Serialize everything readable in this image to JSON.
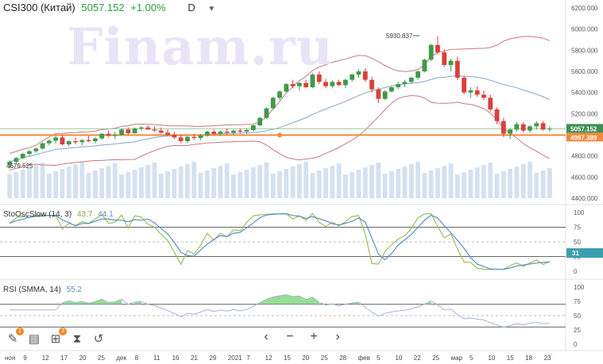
{
  "header": {
    "symbol": "CSI300 (Китай)",
    "price": "5057.152",
    "change": "+1.00%",
    "timeframe": "D"
  },
  "watermark": "Finam.ru",
  "price_axis": [
    "6200.000",
    "6000.000",
    "5800.000",
    "5600.000",
    "5400.000",
    "5200.000",
    "5000.000",
    "4800.000",
    "4600.000",
    "4400.000"
  ],
  "price_badges": {
    "last": "5057.152",
    "level": "4997.389",
    "last_color": "#3f8f55",
    "level_color": "#ef8b3c"
  },
  "annotations": {
    "high": "5930.837",
    "low": "4679.525"
  },
  "stoch": {
    "label": "StoOscSlow (14, 3)",
    "value1": "43.7",
    "value2": "44.1",
    "axis": [
      "100",
      "75",
      "50",
      "25",
      "0"
    ],
    "badge": "31"
  },
  "rsi": {
    "label": "RSI (SMMA, 14)",
    "value": "55.2",
    "axis": [
      "100",
      "75",
      "50",
      "25",
      "0"
    ]
  },
  "time_axis": [
    "ноя",
    "9",
    "12",
    "17",
    "20",
    "25",
    "дек",
    "8",
    "11",
    "16",
    "21",
    "29",
    "2021",
    "7",
    "12",
    "15",
    "20",
    "25",
    "28",
    "фев",
    "5",
    "10",
    "22",
    "25",
    "мар",
    "5",
    "10",
    "15",
    "18",
    "23"
  ],
  "colors": {
    "up": "#3e9a49",
    "down": "#d9413b",
    "bb_outer": "#c9787a",
    "bb_mid": "#7ea6cf",
    "volume": "#d4e1ef",
    "stoch_k": "#9bbf5a",
    "stoch_d": "#5b8fc7",
    "rsi_line": "#9fb5d6",
    "rsi_fill": "#7ed47a",
    "level_line": "#ef8b3c"
  },
  "toolbar_icons": [
    "pencil-icon",
    "document-icon",
    "add-indicator-icon",
    "settings-sliders-icon",
    "reset-icon"
  ],
  "toolbar_badges": [
    "1",
    "",
    "3",
    "",
    ""
  ],
  "zoom_controls": [
    "‹",
    "−",
    "+",
    "›"
  ],
  "chart_data": {
    "type": "candlestick",
    "title": "CSI300 (Китай)",
    "ylim": [
      4400,
      6200
    ],
    "candles": [
      [
        4720,
        4760,
        4679,
        4745
      ],
      [
        4745,
        4790,
        4730,
        4780
      ],
      [
        4780,
        4830,
        4770,
        4820
      ],
      [
        4820,
        4860,
        4800,
        4845
      ],
      [
        4845,
        4880,
        4830,
        4870
      ],
      [
        4870,
        4930,
        4860,
        4920
      ],
      [
        4920,
        4960,
        4900,
        4945
      ],
      [
        4945,
        4990,
        4920,
        4975
      ],
      [
        4975,
        5000,
        4900,
        4910
      ],
      [
        4910,
        4950,
        4890,
        4940
      ],
      [
        4940,
        4970,
        4910,
        4930
      ],
      [
        4930,
        4960,
        4900,
        4950
      ],
      [
        4950,
        4990,
        4930,
        4940
      ],
      [
        4940,
        4980,
        4920,
        4965
      ],
      [
        4965,
        5020,
        4950,
        5010
      ],
      [
        5010,
        5040,
        4980,
        4990
      ],
      [
        4990,
        5030,
        4960,
        5000
      ],
      [
        5000,
        5060,
        4990,
        5050
      ],
      [
        5050,
        5070,
        5000,
        5015
      ],
      [
        5015,
        5070,
        5010,
        5060
      ],
      [
        5060,
        5085,
        5040,
        5070
      ],
      [
        5070,
        5090,
        5045,
        5050
      ],
      [
        5050,
        5080,
        5030,
        5040
      ],
      [
        5040,
        5070,
        5010,
        5020
      ],
      [
        5020,
        5050,
        4990,
        5000
      ],
      [
        5000,
        5030,
        4960,
        4975
      ],
      [
        4975,
        5000,
        4920,
        4940
      ],
      [
        4940,
        4990,
        4920,
        4980
      ],
      [
        4980,
        5010,
        4950,
        4970
      ],
      [
        4970,
        5010,
        4950,
        4995
      ],
      [
        4995,
        5040,
        4980,
        5030
      ],
      [
        5030,
        5050,
        5000,
        5010
      ],
      [
        5010,
        5040,
        4990,
        5030
      ],
      [
        5030,
        5060,
        5000,
        5020
      ],
      [
        5020,
        5050,
        5000,
        5040
      ],
      [
        5040,
        5060,
        5010,
        5030
      ],
      [
        5030,
        5060,
        5010,
        5045
      ],
      [
        5045,
        5100,
        5030,
        5090
      ],
      [
        5090,
        5170,
        5080,
        5160
      ],
      [
        5160,
        5260,
        5150,
        5250
      ],
      [
        5250,
        5360,
        5240,
        5350
      ],
      [
        5350,
        5420,
        5330,
        5410
      ],
      [
        5410,
        5490,
        5400,
        5480
      ],
      [
        5480,
        5520,
        5440,
        5460
      ],
      [
        5460,
        5500,
        5420,
        5490
      ],
      [
        5490,
        5520,
        5440,
        5450
      ],
      [
        5450,
        5580,
        5440,
        5570
      ],
      [
        5570,
        5600,
        5480,
        5500
      ],
      [
        5500,
        5530,
        5440,
        5460
      ],
      [
        5460,
        5520,
        5440,
        5500
      ],
      [
        5500,
        5520,
        5460,
        5470
      ],
      [
        5470,
        5530,
        5440,
        5520
      ],
      [
        5520,
        5580,
        5500,
        5570
      ],
      [
        5570,
        5620,
        5540,
        5600
      ],
      [
        5600,
        5630,
        5500,
        5520
      ],
      [
        5520,
        5550,
        5400,
        5430
      ],
      [
        5430,
        5450,
        5300,
        5340
      ],
      [
        5340,
        5420,
        5330,
        5410
      ],
      [
        5410,
        5460,
        5400,
        5450
      ],
      [
        5450,
        5500,
        5430,
        5480
      ],
      [
        5480,
        5520,
        5450,
        5500
      ],
      [
        5500,
        5550,
        5480,
        5540
      ],
      [
        5540,
        5610,
        5520,
        5600
      ],
      [
        5600,
        5720,
        5590,
        5710
      ],
      [
        5710,
        5860,
        5700,
        5850
      ],
      [
        5850,
        5931,
        5760,
        5780
      ],
      [
        5780,
        5810,
        5640,
        5660
      ],
      [
        5660,
        5720,
        5600,
        5700
      ],
      [
        5700,
        5740,
        5520,
        5540
      ],
      [
        5540,
        5560,
        5380,
        5400
      ],
      [
        5400,
        5450,
        5350,
        5420
      ],
      [
        5420,
        5460,
        5360,
        5380
      ],
      [
        5380,
        5420,
        5330,
        5350
      ],
      [
        5350,
        5380,
        5220,
        5240
      ],
      [
        5240,
        5260,
        5100,
        5130
      ],
      [
        5130,
        5160,
        4980,
        5010
      ],
      [
        5010,
        5060,
        4960,
        5050
      ],
      [
        5050,
        5120,
        5030,
        5100
      ],
      [
        5100,
        5120,
        5020,
        5040
      ],
      [
        5040,
        5090,
        5020,
        5080
      ],
      [
        5080,
        5130,
        5050,
        5110
      ],
      [
        5110,
        5130,
        5040,
        5050
      ],
      [
        5050,
        5080,
        5030,
        5057
      ]
    ],
    "xlabel": "",
    "ylabel": ""
  }
}
